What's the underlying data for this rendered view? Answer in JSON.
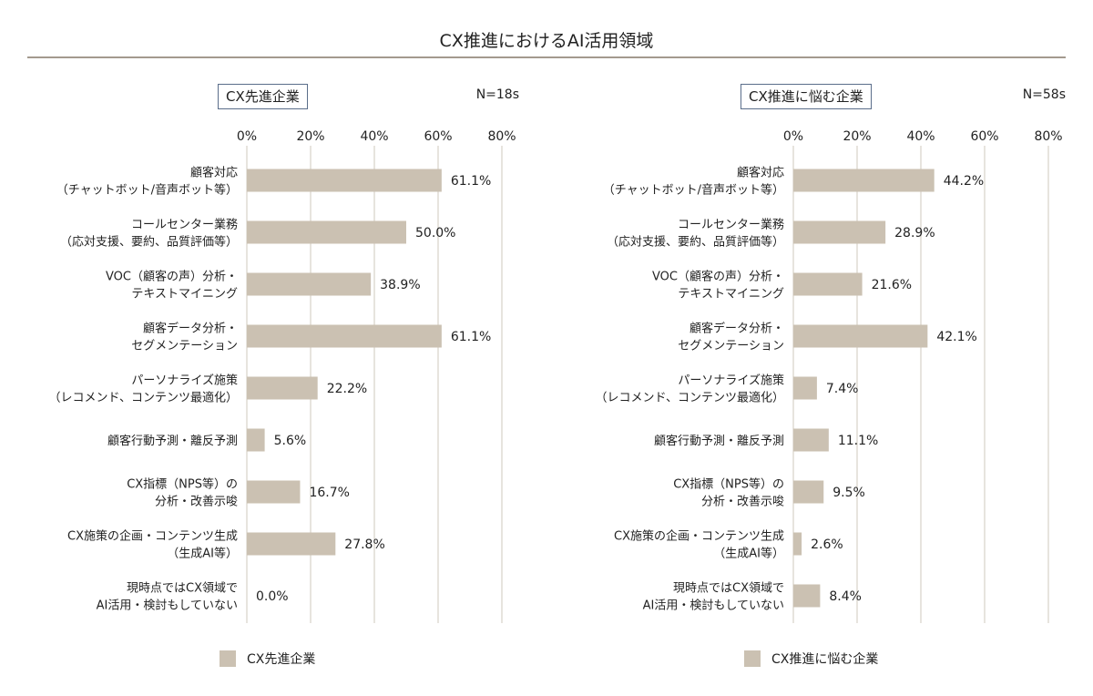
{
  "title": "CX推進におけるAI活用領域",
  "colors": {
    "bar": "#cbc1b2",
    "grid": "#cfc8bd",
    "rule": "#a39a8e",
    "box_border": "#5a6d8a"
  },
  "chart_data": [
    {
      "type": "bar",
      "orientation": "horizontal",
      "series_label": "CX先進企業",
      "sample_size": "N=18s",
      "xlim": [
        0,
        80
      ],
      "ticks": [
        "0%",
        "20%",
        "40%",
        "60%",
        "80%"
      ],
      "grid": true,
      "categories": [
        [
          "顧客対応",
          "（チャットボット/音声ボット等）"
        ],
        [
          "コールセンター業務",
          "（応対支援、要約、品質評価等）"
        ],
        [
          "VOC（顧客の声）分析・",
          "テキストマイニング"
        ],
        [
          "顧客データ分析・",
          "セグメンテーション"
        ],
        [
          "パーソナライズ施策",
          "（レコメンド、コンテンツ最適化）"
        ],
        [
          "顧客行動予測・離反予測"
        ],
        [
          "CX指標（NPS等）の",
          "分析・改善示唆"
        ],
        [
          "CX施策の企画・コンテンツ生成",
          "（生成AI等）"
        ],
        [
          "現時点ではCX領域で",
          "AI活用・検討もしていない"
        ]
      ],
      "values": [
        61.1,
        50.0,
        38.9,
        61.1,
        22.2,
        5.6,
        16.7,
        27.8,
        0.0
      ],
      "value_labels": [
        "61.1%",
        "50.0%",
        "38.9%",
        "61.1%",
        "22.2%",
        "5.6%",
        "16.7%",
        "27.8%",
        "0.0%"
      ],
      "legend": "CX先進企業"
    },
    {
      "type": "bar",
      "orientation": "horizontal",
      "series_label": "CX推進に悩む企業",
      "sample_size": "N=58s",
      "xlim": [
        0,
        80
      ],
      "ticks": [
        "0%",
        "20%",
        "40%",
        "60%",
        "80%"
      ],
      "grid": true,
      "categories": [
        [
          "顧客対応",
          "（チャットボット/音声ボット等）"
        ],
        [
          "コールセンター業務",
          "（応対支援、要約、品質評価等）"
        ],
        [
          "VOC（顧客の声）分析・",
          "テキストマイニング"
        ],
        [
          "顧客データ分析・",
          "セグメンテーション"
        ],
        [
          "パーソナライズ施策",
          "（レコメンド、コンテンツ最適化）"
        ],
        [
          "顧客行動予測・離反予測"
        ],
        [
          "CX指標（NPS等）の",
          "分析・改善示唆"
        ],
        [
          "CX施策の企画・コンテンツ生成",
          "（生成AI等）"
        ],
        [
          "現時点ではCX領域で",
          "AI活用・検討もしていない"
        ]
      ],
      "values": [
        44.2,
        28.9,
        21.6,
        42.1,
        7.4,
        11.1,
        9.5,
        2.6,
        8.4
      ],
      "value_labels": [
        "44.2%",
        "28.9%",
        "21.6%",
        "42.1%",
        "7.4%",
        "11.1%",
        "9.5%",
        "2.6%",
        "8.4%"
      ],
      "legend": "CX推進に悩む企業"
    }
  ]
}
